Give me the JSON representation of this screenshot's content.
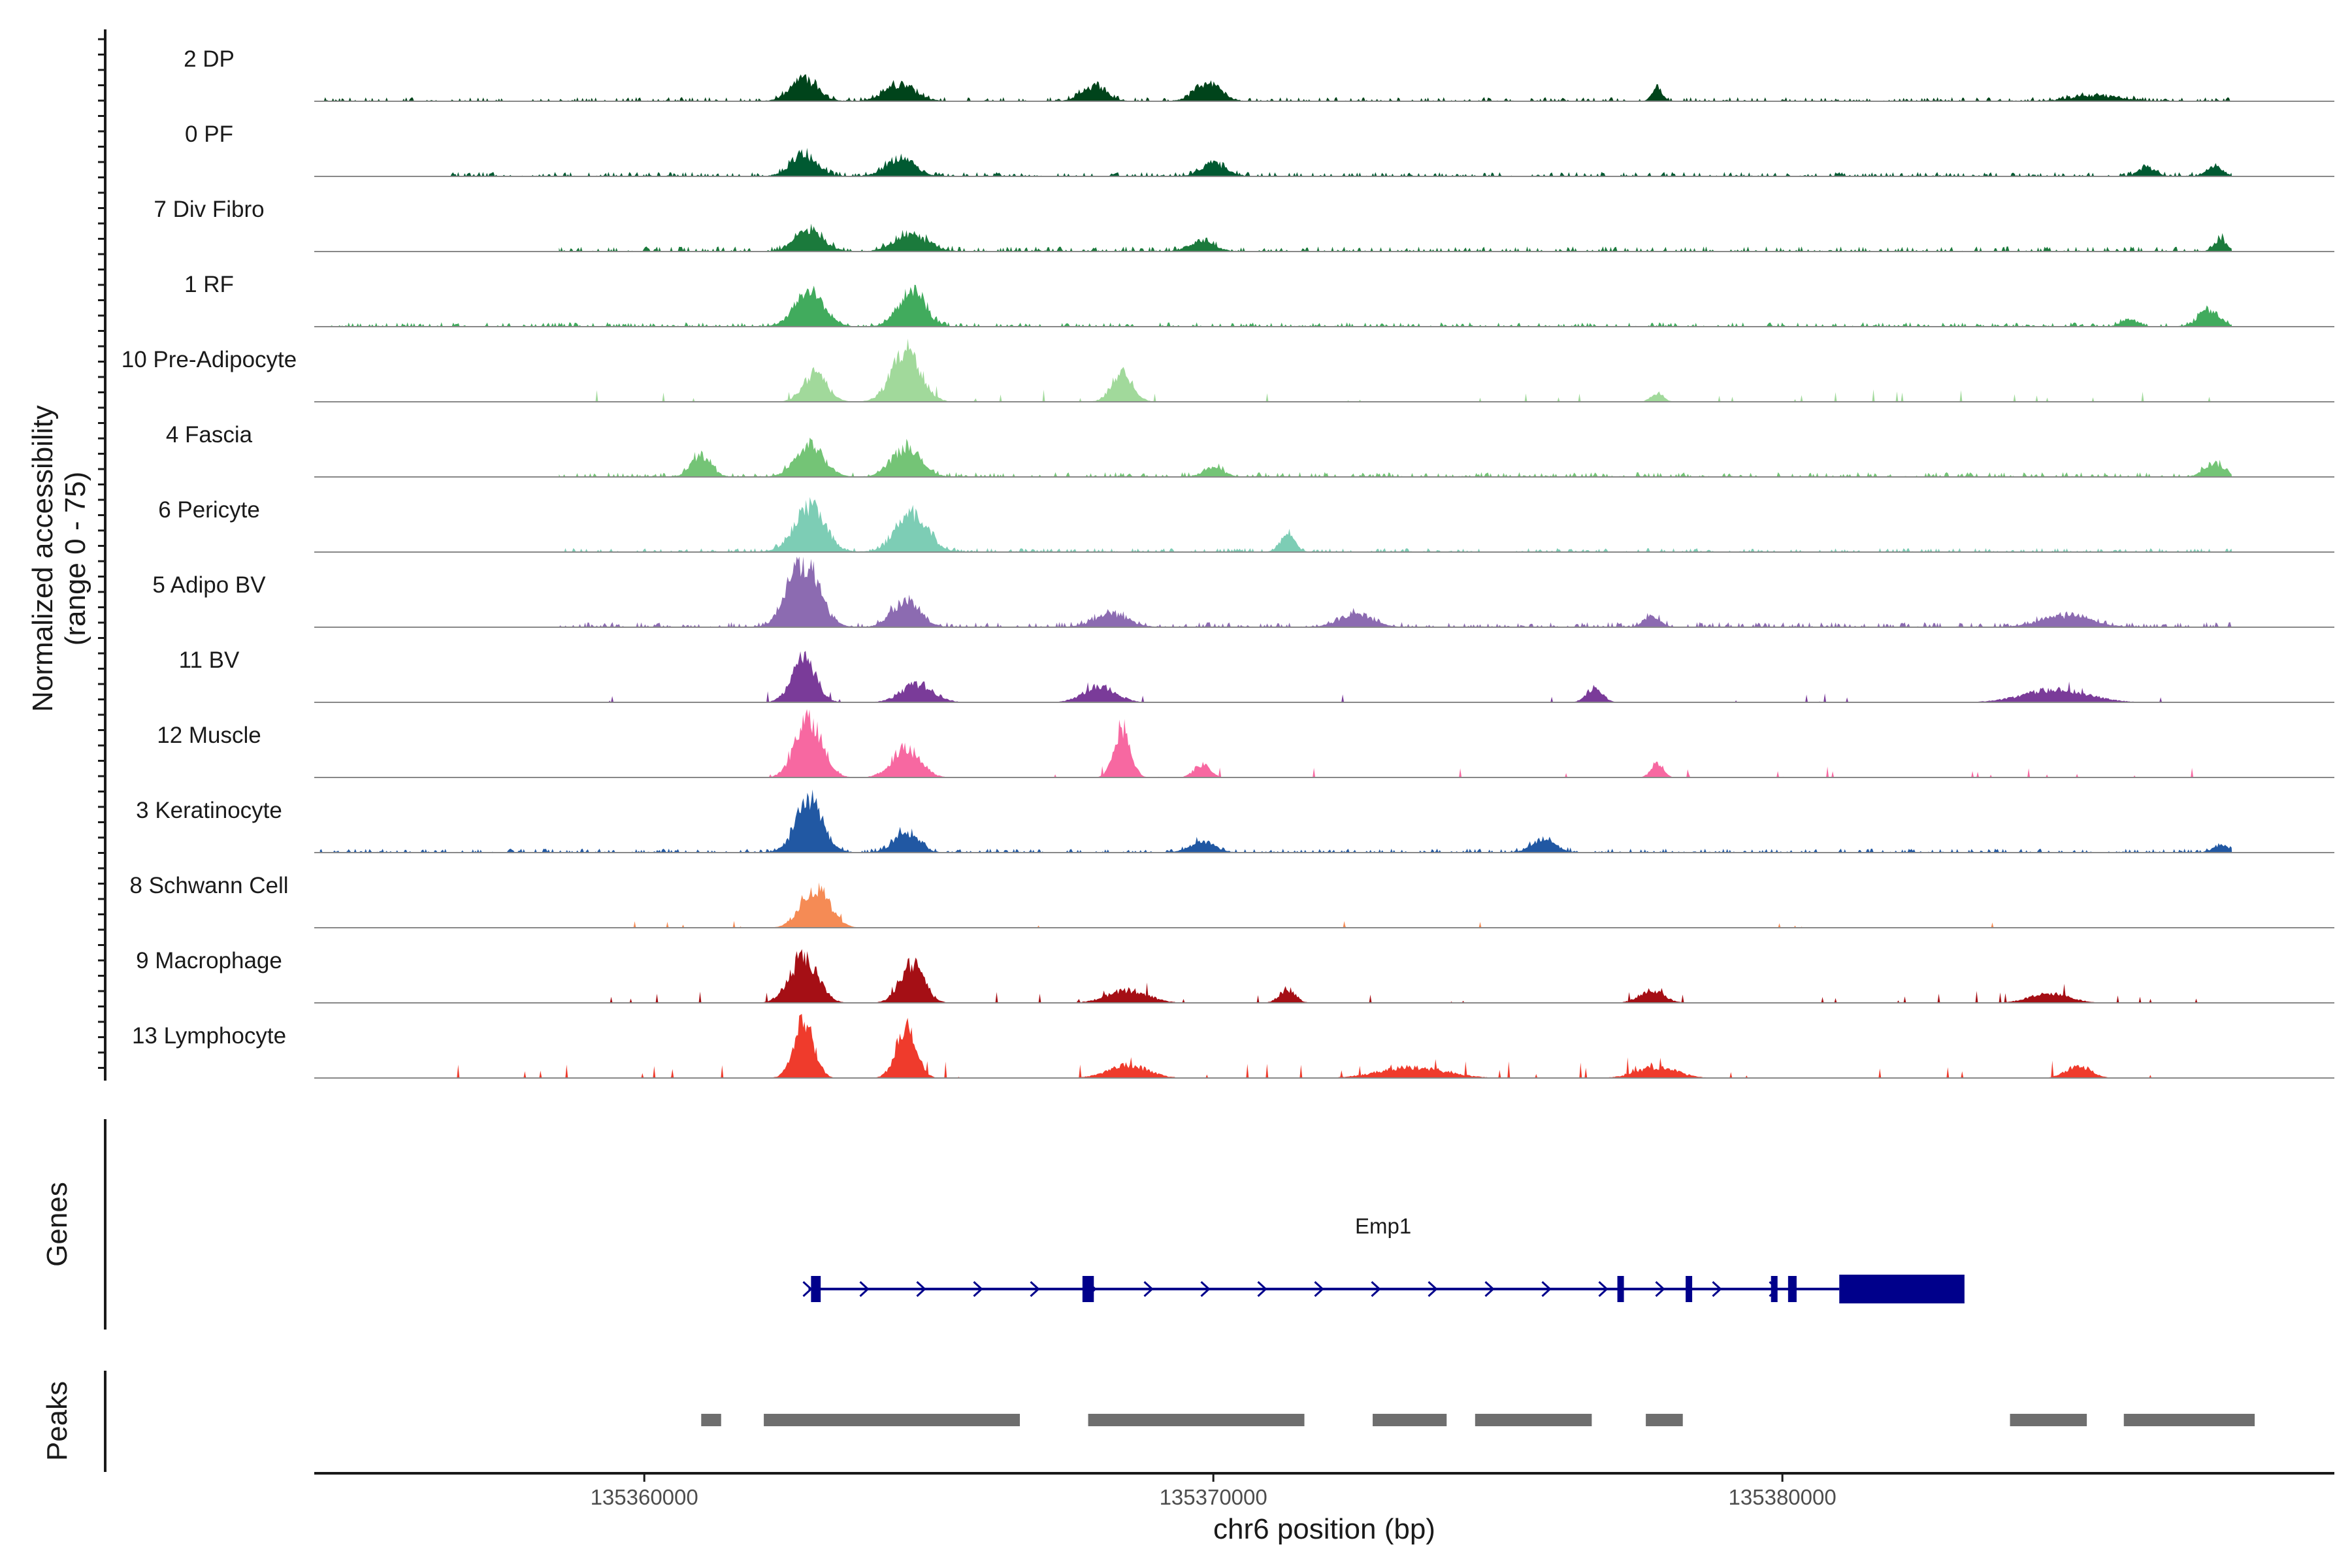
{
  "chart_data": {
    "type": "genome-browser-coverage",
    "y_axis_title_line1": "Normalized accessibility",
    "y_axis_title_line2": "(range 0 - 75)",
    "y_range": [
      0,
      75
    ],
    "x_axis_title": "chr6 position (bp)",
    "x_range": [
      135354200,
      135389700
    ],
    "x_ticks": [
      135360000,
      135370000,
      135380000
    ],
    "x_tick_labels": [
      "135360000",
      "135370000",
      "135380000"
    ],
    "tracks": [
      {
        "label": "2 DP",
        "color": "#00441b",
        "peaks": [
          [
            135362800,
            24,
            330
          ],
          [
            135364500,
            18,
            380
          ],
          [
            135367900,
            16,
            300
          ],
          [
            135369900,
            20,
            320
          ],
          [
            135377800,
            12,
            130
          ],
          [
            135385500,
            6,
            600
          ]
        ],
        "noise": 0.12,
        "dense": true,
        "span": [
          135354300,
          135387900
        ]
      },
      {
        "label": "0 PF",
        "color": "#005a32",
        "peaks": [
          [
            135362800,
            24,
            320
          ],
          [
            135364500,
            20,
            350
          ],
          [
            135370000,
            14,
            300
          ],
          [
            135386400,
            10,
            200
          ],
          [
            135387600,
            10,
            200
          ]
        ],
        "noise": 0.15,
        "dense": true,
        "span": [
          135356500,
          135387900
        ]
      },
      {
        "label": "7 Div Fibro",
        "color": "#1b7a3c",
        "peaks": [
          [
            135362900,
            22,
            350
          ],
          [
            135364700,
            18,
            400
          ],
          [
            135369800,
            12,
            300
          ],
          [
            135387700,
            14,
            150
          ]
        ],
        "noise": 0.2,
        "dense": true,
        "span": [
          135358500,
          135387900
        ]
      },
      {
        "label": "1 RF",
        "color": "#41ab5d",
        "peaks": [
          [
            135362900,
            38,
            360
          ],
          [
            135364700,
            40,
            320
          ],
          [
            135386100,
            8,
            200
          ],
          [
            135387500,
            18,
            260
          ]
        ],
        "noise": 0.14,
        "dense": true,
        "span": [
          135354300,
          135387900
        ]
      },
      {
        "label": "10 Pre-Adipocyte",
        "color": "#a1d99b",
        "peaks": [
          [
            135363000,
            30,
            300
          ],
          [
            135364600,
            56,
            360
          ],
          [
            135368400,
            32,
            260
          ],
          [
            135377800,
            10,
            150
          ]
        ],
        "noise": 0.22,
        "dense": false,
        "span": [
          135358500,
          135387900
        ]
      },
      {
        "label": "4 Fascia",
        "color": "#74c476",
        "peaks": [
          [
            135361000,
            24,
            240
          ],
          [
            135362900,
            34,
            350
          ],
          [
            135364600,
            32,
            360
          ],
          [
            135370000,
            10,
            250
          ],
          [
            135387600,
            14,
            250
          ]
        ],
        "noise": 0.17,
        "dense": true,
        "span": [
          135358500,
          135387900
        ]
      },
      {
        "label": "6 Pericyte",
        "color": "#7dcdb5",
        "peaks": [
          [
            135362900,
            48,
            380
          ],
          [
            135364700,
            44,
            380
          ],
          [
            135371300,
            18,
            180
          ]
        ],
        "noise": 0.1,
        "dense": true,
        "span": [
          135358500,
          135387900
        ]
      },
      {
        "label": "5 Adipo BV",
        "color": "#8c6bb1",
        "peaks": [
          [
            135362800,
            72,
            380
          ],
          [
            135364600,
            30,
            340
          ],
          [
            135368200,
            15,
            400
          ],
          [
            135372500,
            15,
            400
          ],
          [
            135377700,
            12,
            200
          ],
          [
            135385000,
            12,
            600
          ]
        ],
        "noise": 0.2,
        "dense": true,
        "span": [
          135358500,
          135387900
        ]
      },
      {
        "label": "11 BV",
        "color": "#7a3b99",
        "peaks": [
          [
            135362800,
            48,
            300
          ],
          [
            135364800,
            20,
            400
          ],
          [
            135368000,
            18,
            400
          ],
          [
            135376700,
            16,
            200
          ],
          [
            135384800,
            14,
            800
          ]
        ],
        "noise": 0.25,
        "dense": false,
        "span": [
          135359000,
          135387900
        ]
      },
      {
        "label": "12 Muscle",
        "color": "#f768a1",
        "peaks": [
          [
            135362900,
            65,
            330
          ],
          [
            135364600,
            32,
            350
          ],
          [
            135368400,
            56,
            200
          ],
          [
            135369800,
            14,
            200
          ],
          [
            135377800,
            16,
            150
          ]
        ],
        "noise": 0.16,
        "dense": false,
        "span": [
          135359000,
          135387900
        ]
      },
      {
        "label": "3 Keratinocyte",
        "color": "#2158a3",
        "peaks": [
          [
            135362900,
            56,
            330
          ],
          [
            135364600,
            22,
            300
          ],
          [
            135369800,
            12,
            300
          ],
          [
            135375800,
            14,
            300
          ],
          [
            135387700,
            8,
            200
          ]
        ],
        "noise": 0.1,
        "dense": true,
        "span": [
          135354300,
          135387900
        ]
      },
      {
        "label": "8 Schwann Cell",
        "color": "#f58b55",
        "peaks": [
          [
            135363000,
            44,
            350
          ]
        ],
        "noise": 0.05,
        "dense": false,
        "span": [
          135358500,
          135387900
        ]
      },
      {
        "label": "9 Macrophage",
        "color": "#a50f15",
        "peaks": [
          [
            135362800,
            48,
            350
          ],
          [
            135364700,
            42,
            300
          ],
          [
            135368500,
            14,
            500
          ],
          [
            135371300,
            15,
            200
          ],
          [
            135377700,
            14,
            300
          ],
          [
            135384700,
            10,
            500
          ]
        ],
        "noise": 0.2,
        "dense": false,
        "span": [
          135358500,
          135387900
        ]
      },
      {
        "label": "13 Lymphocyte",
        "color": "#ef3b2c",
        "peaks": [
          [
            135362800,
            60,
            250
          ],
          [
            135364600,
            54,
            250
          ],
          [
            135368500,
            14,
            500
          ],
          [
            135373500,
            12,
            800
          ],
          [
            135377800,
            12,
            500
          ],
          [
            135385200,
            14,
            300
          ]
        ],
        "noise": 0.4,
        "dense": false,
        "span": [
          135356500,
          135387900
        ]
      }
    ],
    "genes_title": "Genes",
    "gene": {
      "name": "Emp1",
      "color": "#00008b",
      "start": 135363000,
      "end": 135383200,
      "exons": [
        [
          135362930,
          135363100
        ],
        [
          135367700,
          135367900
        ],
        [
          135377100,
          135377200
        ],
        [
          135378300,
          135378400
        ],
        [
          135379800,
          135379900
        ],
        [
          135380100,
          135380250
        ],
        [
          135381000,
          135383200
        ]
      ]
    },
    "peaks_title": "Peaks",
    "peaks_color": "#6e6e6e",
    "peak_regions": [
      [
        135361000,
        135361350
      ],
      [
        135362100,
        135366600
      ],
      [
        135367800,
        135371600
      ],
      [
        135372800,
        135374100
      ],
      [
        135374600,
        135376650
      ],
      [
        135377600,
        135378250
      ],
      [
        135384000,
        135385350
      ],
      [
        135386000,
        135388300
      ]
    ]
  }
}
